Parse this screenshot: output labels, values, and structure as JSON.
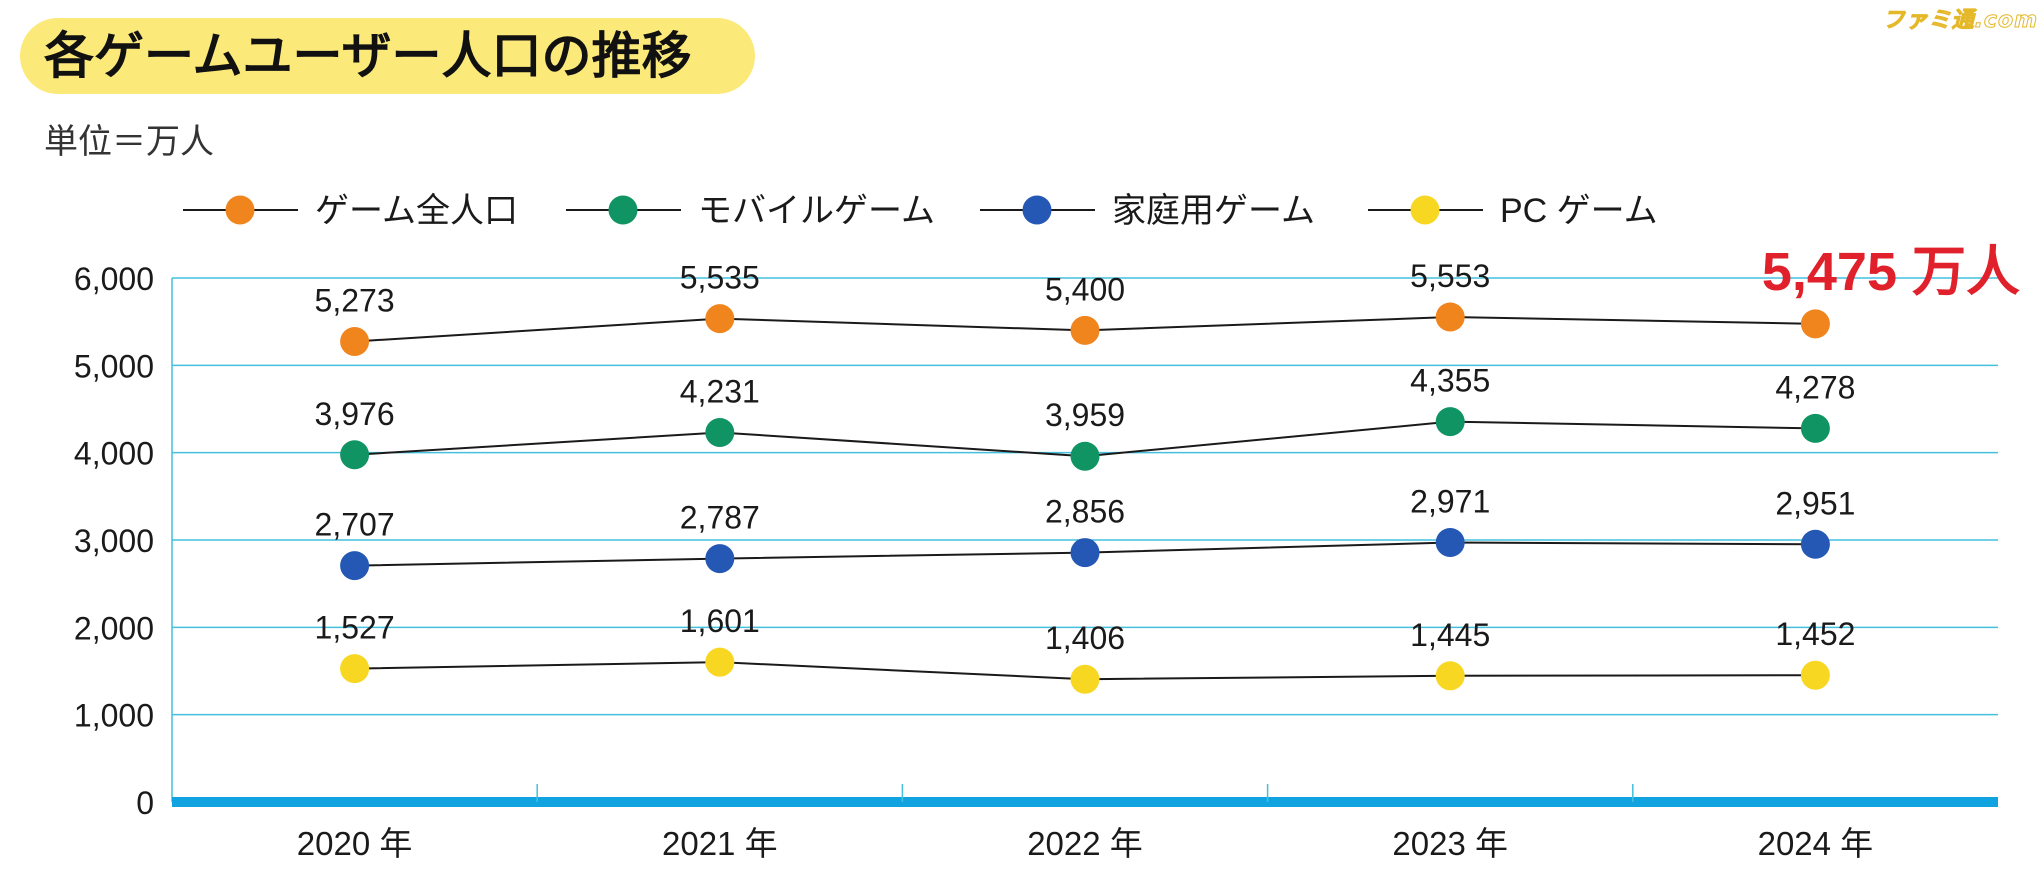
{
  "title": "各ゲームユーザー人口の推移",
  "unit_label": "単位＝万人",
  "watermark": "ファミ通.com",
  "highlight": "5,475 万人",
  "colors": {
    "title_bg": "#fbe97a",
    "grid": "#44c0dd",
    "baseline": "#10a3df",
    "line": "#1a1a1a",
    "highlight": "#e0202a"
  },
  "chart_data": {
    "type": "line",
    "categories": [
      "2020 年",
      "2021 年",
      "2022 年",
      "2023 年",
      "2024 年"
    ],
    "ylim": [
      0,
      6000
    ],
    "yticks": [
      0,
      1000,
      2000,
      3000,
      4000,
      5000,
      6000
    ],
    "ytick_labels": [
      "0",
      "1,000",
      "2,000",
      "3,000",
      "4,000",
      "5,000",
      "6,000"
    ],
    "grid": true,
    "legend_position": "top",
    "series": [
      {
        "name": "ゲーム全人口",
        "color": "#f0841d",
        "values": [
          5273,
          5535,
          5400,
          5553,
          5475
        ],
        "labels": [
          "5,273",
          "5,535",
          "5,400",
          "5,553",
          ""
        ]
      },
      {
        "name": "モバイルゲーム",
        "color": "#109464",
        "values": [
          3976,
          4231,
          3959,
          4355,
          4278
        ],
        "labels": [
          "3,976",
          "4,231",
          "3,959",
          "4,355",
          "4,278"
        ]
      },
      {
        "name": "家庭用ゲーム",
        "color": "#2458b4",
        "values": [
          2707,
          2787,
          2856,
          2971,
          2951
        ],
        "labels": [
          "2,707",
          "2,787",
          "2,856",
          "2,971",
          "2,951"
        ]
      },
      {
        "name": "PC ゲーム",
        "color": "#f8d723",
        "values": [
          1527,
          1601,
          1406,
          1445,
          1452
        ],
        "labels": [
          "1,527",
          "1,601",
          "1,406",
          "1,445",
          "1,452"
        ]
      }
    ]
  }
}
